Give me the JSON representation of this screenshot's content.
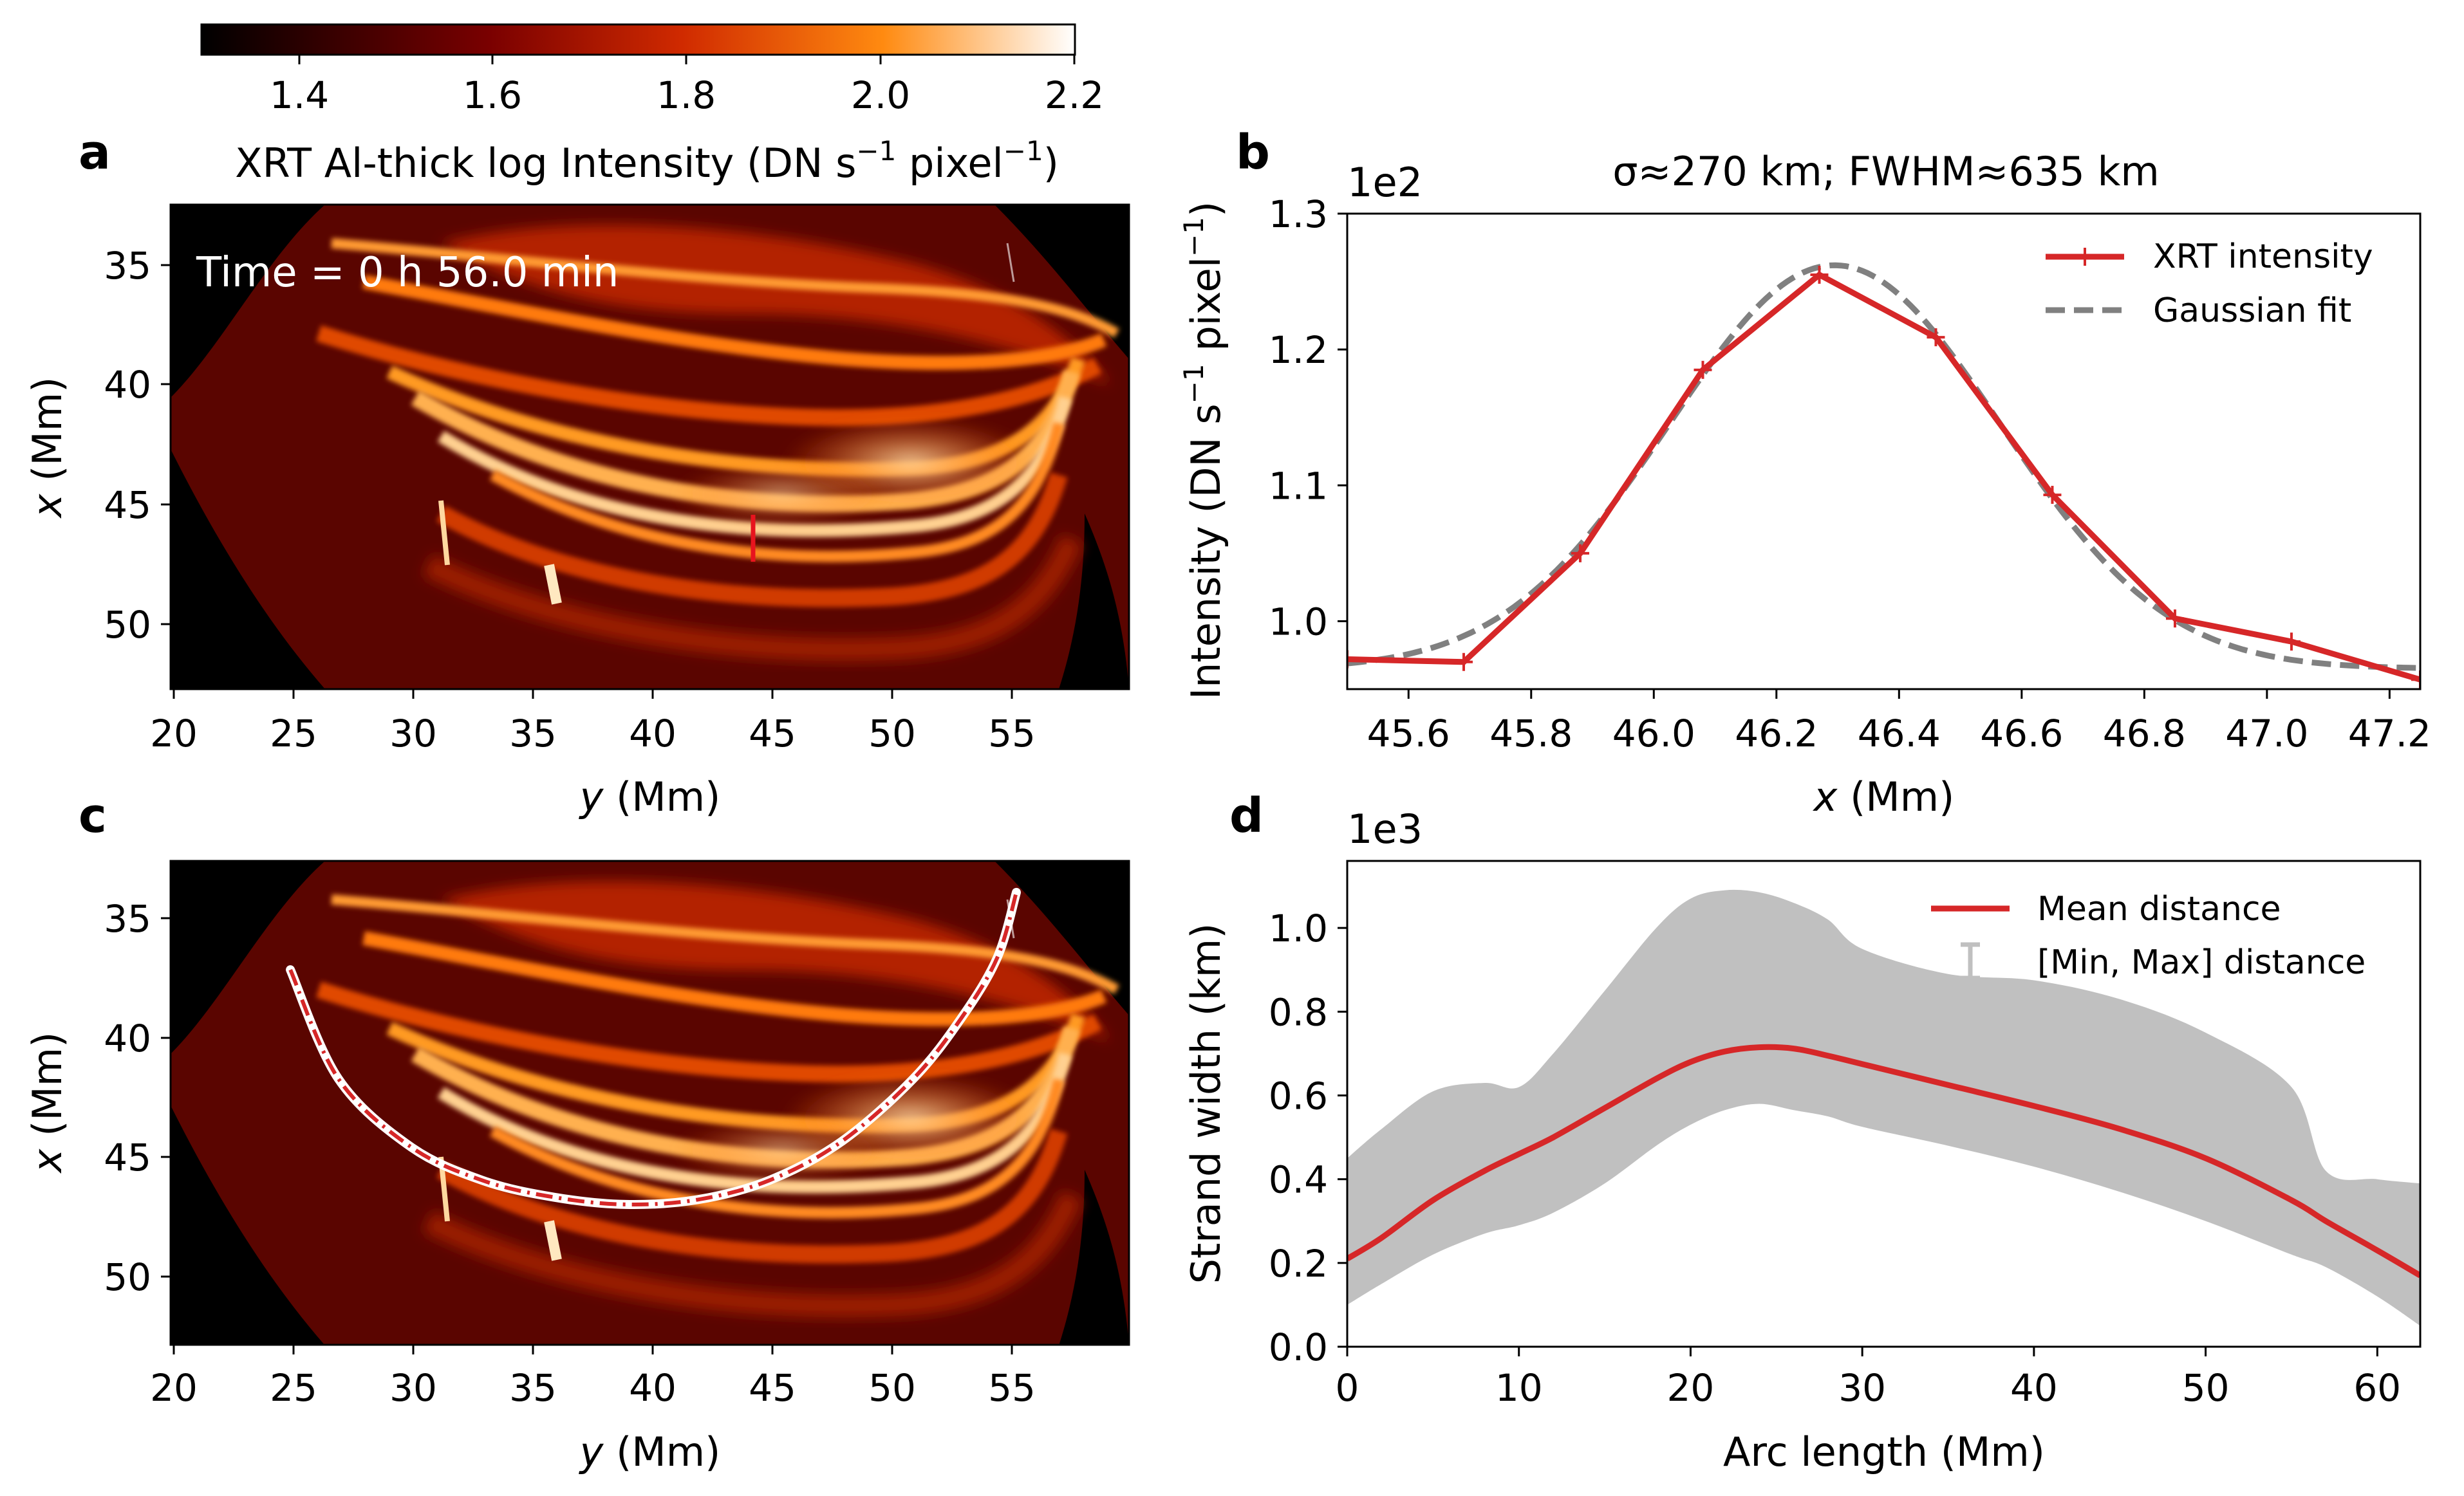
{
  "figure": {
    "colorbar": {
      "ticks": [
        "1.4",
        "1.6",
        "1.8",
        "2.0",
        "2.2"
      ],
      "tick_values": [
        1.4,
        1.6,
        1.8,
        2.0,
        2.2
      ],
      "range": [
        1.3,
        2.2
      ],
      "colormap": "gist_heat"
    },
    "panel_a": {
      "letter": "a",
      "title_text": "XRT Al-thick log Intensity (DN s",
      "title_sup1": "−1",
      "title_mid": " pixel",
      "title_sup2": "−1",
      "title_end": ")",
      "annotation": "Time = 0 h 56.0 min",
      "xlabel_var": "y",
      "xlabel_unit": " (Mm)",
      "ylabel_var": "x",
      "ylabel_unit": " (Mm)",
      "xticks": [
        "20",
        "25",
        "30",
        "35",
        "40",
        "45",
        "50",
        "55"
      ],
      "yticks": [
        "35",
        "40",
        "45",
        "50"
      ]
    },
    "panel_b": {
      "letter": "b",
      "title": "σ≈270 km; FWHM≈635 km",
      "offset": "1e2",
      "ylabel_pre": "Intensity (DN s",
      "ylabel_sup1": "−1",
      "ylabel_mid": " pixel",
      "ylabel_sup2": "−1",
      "ylabel_end": ")",
      "xlabel_var": "x",
      "xlabel_unit": " (Mm)",
      "xticks": [
        "45.6",
        "45.8",
        "46.0",
        "46.2",
        "46.4",
        "46.6",
        "46.8",
        "47.0",
        "47.2"
      ],
      "yticks": [
        "1.0",
        "1.1",
        "1.2",
        "1.3"
      ],
      "legend": {
        "series1": "XRT intensity",
        "series2": "Gaussian fit"
      }
    },
    "panel_c": {
      "letter": "c",
      "xlabel_var": "y",
      "xlabel_unit": " (Mm)",
      "ylabel_var": "x",
      "ylabel_unit": " (Mm)",
      "xticks": [
        "20",
        "25",
        "30",
        "35",
        "40",
        "45",
        "50",
        "55"
      ],
      "yticks": [
        "35",
        "40",
        "45",
        "50"
      ]
    },
    "panel_d": {
      "letter": "d",
      "offset": "1e3",
      "ylabel": "Strand width (km)",
      "xlabel": "Arc length (Mm)",
      "xticks": [
        "0",
        "10",
        "20",
        "30",
        "40",
        "50",
        "60"
      ],
      "yticks": [
        "0.0",
        "0.2",
        "0.4",
        "0.6",
        "0.8",
        "1.0"
      ],
      "legend": {
        "series1": "Mean distance",
        "series2": "[Min, Max] distance"
      }
    }
  },
  "chart_data": [
    {
      "panel": "a",
      "type": "heatmap",
      "title": "XRT Al-thick log Intensity (DN s−1 pixel−1)",
      "xlabel": "y (Mm)",
      "ylabel": "x (Mm)",
      "xlim": [
        20,
        60
      ],
      "ylim": [
        53,
        33
      ],
      "color_range": [
        1.3,
        2.2
      ],
      "annotation": "Time = 0 h 56.0 min",
      "marker": {
        "y": 44.2,
        "x_from": 45.5,
        "x_to": 47.3,
        "color": "#e8141e"
      }
    },
    {
      "panel": "b",
      "type": "line",
      "title": "σ≈270 km; FWHM≈635 km",
      "xlabel": "x (Mm)",
      "ylabel": "Intensity (DN s−1 pixel−1)",
      "xlim": [
        45.5,
        47.25
      ],
      "ylim": [
        0.95,
        1.3
      ],
      "y_scale": "1e2",
      "series": [
        {
          "name": "XRT intensity",
          "color": "#d62728",
          "x": [
            45.5,
            45.69,
            45.88,
            46.08,
            46.27,
            46.46,
            46.65,
            46.85,
            47.04,
            47.25
          ],
          "y": [
            0.972,
            0.97,
            1.05,
            1.185,
            1.255,
            1.209,
            1.093,
            1.002,
            0.985,
            0.957
          ]
        },
        {
          "name": "Gaussian fit",
          "color": "#808080",
          "style": "dashed",
          "amplitude": 0.297,
          "center": 46.295,
          "sigma": 0.27,
          "offset": 0.965
        }
      ]
    },
    {
      "panel": "c",
      "type": "heatmap",
      "xlabel": "y (Mm)",
      "ylabel": "x (Mm)",
      "xlim": [
        20,
        60
      ],
      "ylim": [
        53,
        33
      ],
      "arc": {
        "y": [
          25,
          27,
          30,
          33,
          36,
          39,
          42,
          45,
          48,
          51,
          53,
          54.5,
          55.3
        ],
        "x": [
          37.5,
          42.0,
          44.8,
          46.2,
          46.9,
          47.2,
          47.0,
          46.2,
          44.6,
          42.0,
          39.5,
          37.0,
          34.3
        ],
        "color": "#d62728"
      }
    },
    {
      "panel": "d",
      "type": "area",
      "xlabel": "Arc length (Mm)",
      "ylabel": "Strand width (km)",
      "xlim": [
        0,
        62.5
      ],
      "ylim": [
        0,
        1.16
      ],
      "y_scale": "1e3",
      "x": [
        0,
        2,
        5,
        8,
        10,
        12,
        15,
        18,
        20,
        22,
        24,
        26,
        28,
        30,
        35,
        40,
        45,
        50,
        55,
        57,
        60,
        62.5
      ],
      "series": [
        {
          "name": "Mean distance",
          "color": "#d62728",
          "values": [
            0.21,
            0.26,
            0.35,
            0.42,
            0.46,
            0.5,
            0.57,
            0.64,
            0.68,
            0.705,
            0.715,
            0.712,
            0.695,
            0.675,
            0.625,
            0.575,
            0.52,
            0.45,
            0.35,
            0.3,
            0.23,
            0.17
          ]
        },
        {
          "name": "[Min, Max] distance (min)",
          "color": "#c0c0c0",
          "values": [
            0.1,
            0.15,
            0.22,
            0.27,
            0.29,
            0.32,
            0.39,
            0.48,
            0.53,
            0.565,
            0.58,
            0.565,
            0.55,
            0.525,
            0.48,
            0.43,
            0.37,
            0.3,
            0.22,
            0.19,
            0.12,
            0.05
          ]
        },
        {
          "name": "[Min, Max] distance (max)",
          "color": "#c0c0c0",
          "values": [
            0.45,
            0.52,
            0.61,
            0.63,
            0.62,
            0.7,
            0.85,
            1.0,
            1.07,
            1.09,
            1.085,
            1.06,
            1.02,
            0.95,
            0.89,
            0.875,
            0.83,
            0.75,
            0.62,
            0.42,
            0.4,
            0.39
          ]
        }
      ]
    }
  ]
}
